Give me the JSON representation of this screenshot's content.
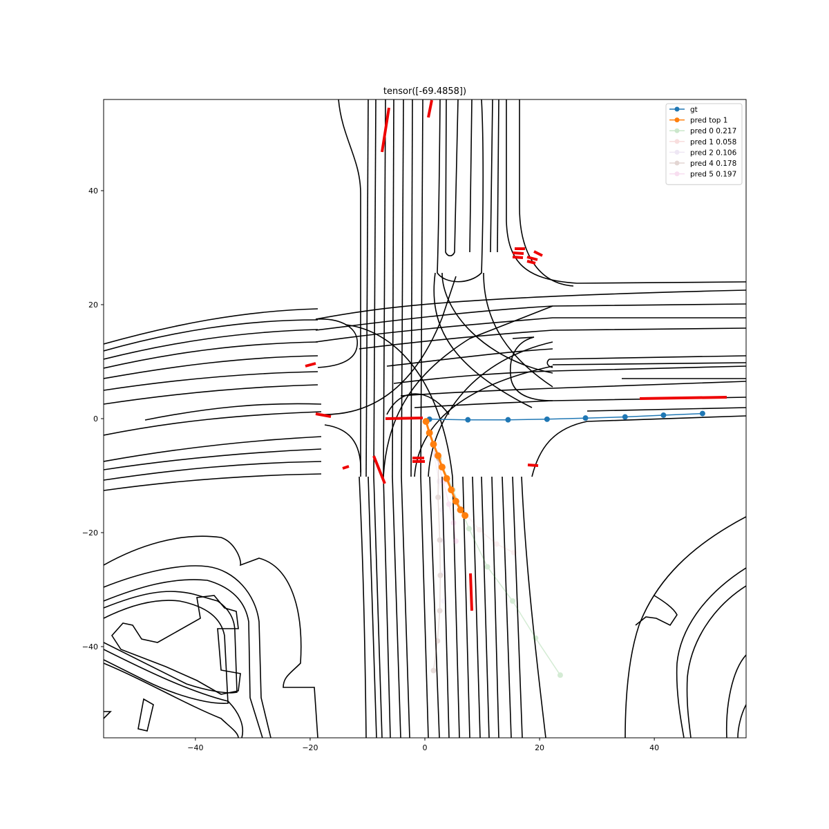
{
  "chart_data": {
    "type": "line",
    "title": "tensor([-69.4858])",
    "xlabel": "",
    "ylabel": "",
    "xlim": [
      -56,
      56
    ],
    "ylim": [
      -56,
      56
    ],
    "xticks": [
      -40,
      -20,
      0,
      20,
      40
    ],
    "yticks": [
      -40,
      -20,
      0,
      20,
      40
    ],
    "grid": false,
    "legend_position": "top-right",
    "series": [
      {
        "name": "gt",
        "color": "#1f77b4",
        "alpha": 1.0,
        "x": [
          0.8,
          7.5,
          14.5,
          21.3,
          28.0,
          34.9,
          41.6,
          48.4
        ],
        "y": [
          -0.1,
          -0.2,
          -0.2,
          -0.1,
          0.1,
          0.3,
          0.6,
          0.9
        ]
      },
      {
        "name": "pred top 1",
        "color": "#ff7f0e",
        "alpha": 1.0,
        "x": [
          0.2,
          0.8,
          1.5,
          2.3,
          3.0,
          3.8,
          4.6,
          5.4,
          6.2,
          7.0
        ],
        "y": [
          -0.5,
          -2.5,
          -4.5,
          -6.5,
          -8.5,
          -10.5,
          -12.5,
          -14.5,
          -16.0,
          -17.0
        ]
      },
      {
        "name": "pred 0 0.217",
        "color": "#2ca02c",
        "alpha": 0.2,
        "x": [
          2.5,
          4.9,
          7.7,
          10.9,
          15.3,
          19.3,
          23.6
        ],
        "y": [
          -7.0,
          -12.5,
          -19.3,
          -26.0,
          -32.0,
          -38.5,
          -45.0
        ]
      },
      {
        "name": "pred 1 0.058",
        "color": "#d62728",
        "alpha": 0.07,
        "x": [
          2.0,
          4.0,
          6.5,
          9.5,
          12.5,
          15.5
        ],
        "y": [
          -6.0,
          -11.0,
          -16.0,
          -19.5,
          -22.0,
          -23.5
        ]
      },
      {
        "name": "pred 2 0.106",
        "color": "#9467bd",
        "alpha": 0.07,
        "x": [
          1.5,
          2.5,
          3.0,
          3.2,
          3.3,
          3.3
        ],
        "y": [
          -6.0,
          -11.0,
          -16.0,
          -21.5,
          -27.0,
          -32.0
        ]
      },
      {
        "name": "pred 4 0.178",
        "color": "#8c564b",
        "alpha": 0.2,
        "x": [
          2.4,
          2.3,
          2.6,
          2.7,
          2.6,
          2.2,
          1.5
        ],
        "y": [
          -7.0,
          -13.8,
          -21.3,
          -27.5,
          -33.7,
          -39.0,
          -44.2
        ]
      },
      {
        "name": "pred 5 0.197",
        "color": "#e377c2",
        "alpha": 0.2,
        "x": [
          2.0,
          3.2,
          4.2,
          5.0,
          5.4
        ],
        "y": [
          -6.5,
          -11.0,
          -15.0,
          -18.3,
          -21.5
        ]
      }
    ]
  }
}
